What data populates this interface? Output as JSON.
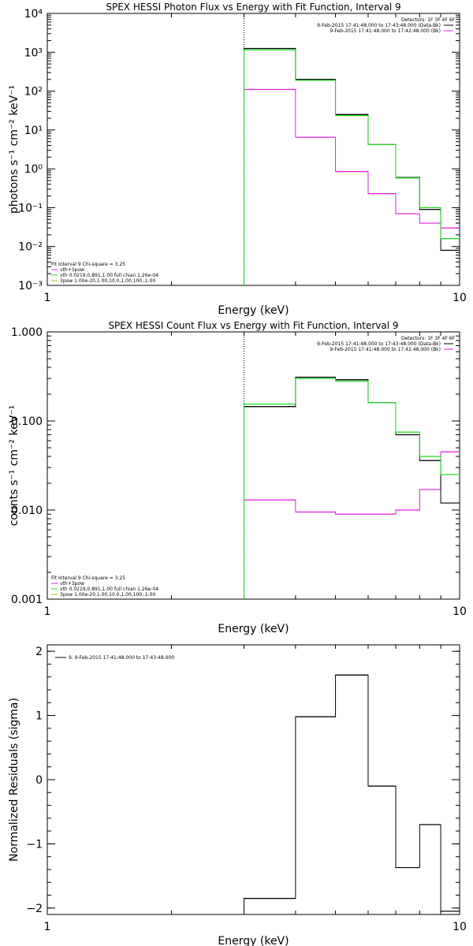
{
  "colors": {
    "data": "#000000",
    "fit": "#22dd22",
    "background": "#dd22dd",
    "frame": "#000000"
  },
  "chart_data": [
    {
      "type": "line",
      "title": "SPEX HESSI Photon Flux vs Energy with Fit Function, Interval 9",
      "xlabel": "Energy (keV)",
      "ylabel": "photons s⁻¹ cm⁻² keV⁻¹",
      "x_scale": "log",
      "y_scale": "log",
      "xlim": [
        1,
        10
      ],
      "ylim": [
        0.001,
        10000
      ],
      "x_ticks": [
        {
          "v": 1,
          "label": "1"
        },
        {
          "v": 10,
          "label": "10"
        }
      ],
      "y_ticks": [
        {
          "v": 0.001,
          "label": "10⁻³"
        },
        {
          "v": 0.01,
          "label": "10⁻²"
        },
        {
          "v": 0.1,
          "label": "10⁻¹"
        },
        {
          "v": 1,
          "label": "10⁰"
        },
        {
          "v": 10,
          "label": "10¹"
        },
        {
          "v": 100,
          "label": "10²"
        },
        {
          "v": 1000,
          "label": "10³"
        },
        {
          "v": 10000,
          "label": "10⁴"
        }
      ],
      "vline_x": 3,
      "bin_edges": [
        3,
        4,
        5,
        6,
        7,
        8,
        9,
        10
      ],
      "series": [
        {
          "key": "data",
          "values": [
            1250,
            200,
            25,
            4.2,
            0.6,
            0.09,
            0.008
          ]
        },
        {
          "key": "fit",
          "values": [
            1150,
            190,
            23.5,
            4.2,
            0.58,
            0.1,
            0.016
          ]
        },
        {
          "key": "background",
          "values": [
            110,
            6.5,
            0.85,
            0.23,
            0.07,
            0.04,
            0.03
          ]
        }
      ],
      "legend_top": [
        "Detectors: 1F 3F 4F 6F",
        "9-Feb-2015 17:41:48.000 to 17:43:48.000 (Data-Bk)",
        "9-Feb-2015 17:41:48.000 to 17:42:48.000 (Bk)"
      ],
      "legend_bottom": [
        "Fit Interval 9   Chi-square = 3.25",
        "vth+3pow",
        "vth 0.0219,0.891,1.00  full chian 1.26e-04",
        "3pow 1.00e-20,1.00,10.0,1.00,100.,1.00"
      ]
    },
    {
      "type": "line",
      "title": "SPEX HESSI Count Flux vs Energy with Fit Function, Interval 9",
      "xlabel": "Energy (keV)",
      "ylabel": "counts s⁻¹ cm⁻² keV⁻¹",
      "x_scale": "log",
      "y_scale": "log",
      "xlim": [
        1,
        10
      ],
      "ylim": [
        0.001,
        1
      ],
      "x_ticks": [
        {
          "v": 1,
          "label": "1"
        },
        {
          "v": 10,
          "label": "10"
        }
      ],
      "y_ticks": [
        {
          "v": 0.001,
          "label": "0.001"
        },
        {
          "v": 0.01,
          "label": "0.010"
        },
        {
          "v": 0.1,
          "label": "0.100"
        },
        {
          "v": 1,
          "label": "1.000"
        }
      ],
      "vline_x": 3,
      "bin_edges": [
        3,
        4,
        5,
        6,
        7,
        8,
        9,
        10
      ],
      "series": [
        {
          "key": "data",
          "values": [
            0.145,
            0.31,
            0.29,
            0.16,
            0.07,
            0.036,
            0.012
          ]
        },
        {
          "key": "fit",
          "values": [
            0.155,
            0.3,
            0.28,
            0.16,
            0.075,
            0.04,
            0.025
          ]
        },
        {
          "key": "background",
          "values": [
            0.013,
            0.0095,
            0.009,
            0.009,
            0.01,
            0.017,
            0.045
          ]
        }
      ],
      "legend_top": [
        "Detectors: 1F 3F 4F 6F",
        "9-Feb-2015 17:41:48.000 to 17:43:48.000 (Data-Bk)",
        "9-Feb-2015 17:41:48.000 to 17:42:48.000 (Bk)"
      ],
      "legend_bottom": [
        "Fit Interval 9   Chi-square = 3.25",
        "vth+3pow",
        "vth 0.0219,0.891,1.00  full chian 1.26e-04",
        "3pow 1.00e-20,1.00,10.0,1.00,100.,1.00"
      ]
    },
    {
      "type": "line",
      "title": "",
      "xlabel": "Energy (keV)",
      "ylabel": "Normalized Residuals (sigma)",
      "x_scale": "log",
      "y_scale": "linear",
      "xlim": [
        1,
        10
      ],
      "ylim": [
        -2.1,
        2.1
      ],
      "x_ticks": [
        {
          "v": 1,
          "label": "1"
        },
        {
          "v": 10,
          "label": "10"
        }
      ],
      "y_ticks": [
        {
          "v": -2,
          "label": "−2"
        },
        {
          "v": -1,
          "label": "−1"
        },
        {
          "v": 0,
          "label": "0"
        },
        {
          "v": 1,
          "label": "1"
        },
        {
          "v": 2,
          "label": "2"
        }
      ],
      "bin_edges": [
        3,
        4,
        5,
        6,
        7,
        8,
        9,
        10
      ],
      "series": [
        {
          "key": "data",
          "values": [
            -1.85,
            0.98,
            1.63,
            -0.1,
            -1.37,
            -0.7,
            -2.05
          ]
        }
      ],
      "legend_top": [
        "9.  9-Feb-2015 17:41:48.000 to 17:43:48.000"
      ],
      "legend_bottom": []
    }
  ]
}
